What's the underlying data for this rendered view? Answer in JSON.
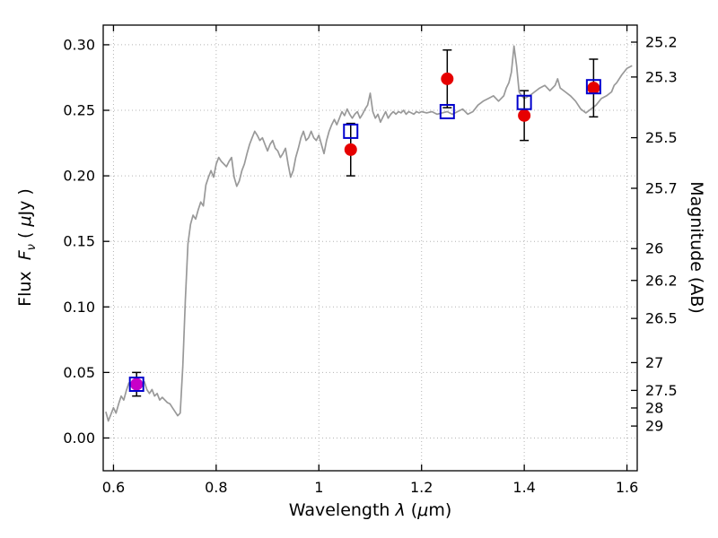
{
  "chart_data": {
    "type": "line",
    "title": "",
    "xlabel": "Wavelength λ (μm)",
    "xlabel_parts": {
      "pre": "Wavelength ",
      "lambda": "λ",
      "mid": " (",
      "mu": "μ",
      "post": "m)"
    },
    "ylabel_left": "Flux Fν ( μJy )",
    "ylabel_left_parts": {
      "pre": "Flux  ",
      "f": "F",
      "sub": "ν",
      "post1": " ( ",
      "mu": "μ",
      "post2": "Jy )"
    },
    "ylabel_right": "Magnitude (AB)",
    "xlim": [
      0.58,
      1.62
    ],
    "ylim": [
      -0.025,
      0.315
    ],
    "grid": true,
    "grid_style": "dotted",
    "legend": "none",
    "colors": {
      "spectrum": "#999999",
      "grid": "#b4b4b4",
      "observed": "#e60000",
      "observed_first": "#c800c8",
      "model": "#0000cd",
      "error_bar": "#000000",
      "axis": "#000000"
    },
    "x_ticks": [
      {
        "label": "0.6",
        "value": 0.6
      },
      {
        "label": "0.8",
        "value": 0.8
      },
      {
        "label": "1",
        "value": 1.0
      },
      {
        "label": "1.2",
        "value": 1.2
      },
      {
        "label": "1.4",
        "value": 1.4
      },
      {
        "label": "1.6",
        "value": 1.6
      }
    ],
    "y_ticks_left": [
      {
        "label": "0.00",
        "value": 0.0
      },
      {
        "label": "0.05",
        "value": 0.05
      },
      {
        "label": "0.10",
        "value": 0.1
      },
      {
        "label": "0.15",
        "value": 0.15
      },
      {
        "label": "0.20",
        "value": 0.2
      },
      {
        "label": "0.25",
        "value": 0.25
      },
      {
        "label": "0.30",
        "value": 0.3
      }
    ],
    "y_ticks_right": [
      {
        "label": "25.2",
        "value": 0.302
      },
      {
        "label": "25.3",
        "value": 0.2754
      },
      {
        "label": "25.5",
        "value": 0.2291
      },
      {
        "label": "25.7",
        "value": 0.1905
      },
      {
        "label": "26",
        "value": 0.1445
      },
      {
        "label": "26.2",
        "value": 0.1202
      },
      {
        "label": "26.5",
        "value": 0.0912
      },
      {
        "label": "27",
        "value": 0.0575
      },
      {
        "label": "27.5",
        "value": 0.0363
      },
      {
        "label": "28",
        "value": 0.0229
      },
      {
        "label": "29",
        "value": 0.00912
      }
    ],
    "series": [
      {
        "name": "model-spectrum",
        "type": "line",
        "color": "#999999",
        "points": [
          [
            0.585,
            0.02
          ],
          [
            0.59,
            0.013
          ],
          [
            0.595,
            0.018
          ],
          [
            0.6,
            0.023
          ],
          [
            0.605,
            0.019
          ],
          [
            0.61,
            0.026
          ],
          [
            0.615,
            0.032
          ],
          [
            0.62,
            0.029
          ],
          [
            0.625,
            0.036
          ],
          [
            0.63,
            0.042
          ],
          [
            0.635,
            0.039
          ],
          [
            0.64,
            0.044
          ],
          [
            0.645,
            0.041
          ],
          [
            0.65,
            0.044
          ],
          [
            0.655,
            0.039
          ],
          [
            0.66,
            0.043
          ],
          [
            0.665,
            0.037
          ],
          [
            0.67,
            0.034
          ],
          [
            0.675,
            0.037
          ],
          [
            0.68,
            0.032
          ],
          [
            0.685,
            0.034
          ],
          [
            0.69,
            0.029
          ],
          [
            0.695,
            0.031
          ],
          [
            0.7,
            0.029
          ],
          [
            0.705,
            0.027
          ],
          [
            0.71,
            0.026
          ],
          [
            0.715,
            0.023
          ],
          [
            0.72,
            0.02
          ],
          [
            0.725,
            0.017
          ],
          [
            0.73,
            0.019
          ],
          [
            0.735,
            0.055
          ],
          [
            0.74,
            0.105
          ],
          [
            0.745,
            0.148
          ],
          [
            0.75,
            0.163
          ],
          [
            0.755,
            0.17
          ],
          [
            0.76,
            0.167
          ],
          [
            0.765,
            0.174
          ],
          [
            0.77,
            0.18
          ],
          [
            0.775,
            0.177
          ],
          [
            0.78,
            0.193
          ],
          [
            0.785,
            0.199
          ],
          [
            0.79,
            0.204
          ],
          [
            0.795,
            0.199
          ],
          [
            0.8,
            0.209
          ],
          [
            0.805,
            0.214
          ],
          [
            0.81,
            0.211
          ],
          [
            0.815,
            0.209
          ],
          [
            0.82,
            0.207
          ],
          [
            0.825,
            0.211
          ],
          [
            0.83,
            0.214
          ],
          [
            0.835,
            0.199
          ],
          [
            0.84,
            0.192
          ],
          [
            0.845,
            0.196
          ],
          [
            0.85,
            0.204
          ],
          [
            0.855,
            0.209
          ],
          [
            0.86,
            0.217
          ],
          [
            0.865,
            0.224
          ],
          [
            0.87,
            0.229
          ],
          [
            0.875,
            0.234
          ],
          [
            0.88,
            0.231
          ],
          [
            0.885,
            0.227
          ],
          [
            0.89,
            0.229
          ],
          [
            0.895,
            0.224
          ],
          [
            0.9,
            0.219
          ],
          [
            0.905,
            0.224
          ],
          [
            0.91,
            0.227
          ],
          [
            0.915,
            0.221
          ],
          [
            0.92,
            0.219
          ],
          [
            0.925,
            0.214
          ],
          [
            0.93,
            0.217
          ],
          [
            0.935,
            0.221
          ],
          [
            0.94,
            0.209
          ],
          [
            0.945,
            0.199
          ],
          [
            0.95,
            0.204
          ],
          [
            0.955,
            0.214
          ],
          [
            0.96,
            0.221
          ],
          [
            0.965,
            0.229
          ],
          [
            0.97,
            0.234
          ],
          [
            0.975,
            0.227
          ],
          [
            0.98,
            0.229
          ],
          [
            0.985,
            0.234
          ],
          [
            0.99,
            0.229
          ],
          [
            0.995,
            0.227
          ],
          [
            1.0,
            0.231
          ],
          [
            1.005,
            0.224
          ],
          [
            1.01,
            0.217
          ],
          [
            1.015,
            0.227
          ],
          [
            1.02,
            0.234
          ],
          [
            1.025,
            0.239
          ],
          [
            1.03,
            0.243
          ],
          [
            1.035,
            0.239
          ],
          [
            1.04,
            0.244
          ],
          [
            1.045,
            0.249
          ],
          [
            1.05,
            0.246
          ],
          [
            1.055,
            0.251
          ],
          [
            1.06,
            0.247
          ],
          [
            1.065,
            0.244
          ],
          [
            1.07,
            0.247
          ],
          [
            1.075,
            0.249
          ],
          [
            1.08,
            0.244
          ],
          [
            1.085,
            0.247
          ],
          [
            1.09,
            0.251
          ],
          [
            1.095,
            0.254
          ],
          [
            1.1,
            0.263
          ],
          [
            1.105,
            0.249
          ],
          [
            1.11,
            0.244
          ],
          [
            1.115,
            0.247
          ],
          [
            1.12,
            0.241
          ],
          [
            1.125,
            0.245
          ],
          [
            1.13,
            0.249
          ],
          [
            1.135,
            0.244
          ],
          [
            1.14,
            0.247
          ],
          [
            1.145,
            0.249
          ],
          [
            1.15,
            0.247
          ],
          [
            1.155,
            0.249
          ],
          [
            1.16,
            0.248
          ],
          [
            1.165,
            0.25
          ],
          [
            1.17,
            0.247
          ],
          [
            1.175,
            0.249
          ],
          [
            1.18,
            0.248
          ],
          [
            1.185,
            0.247
          ],
          [
            1.19,
            0.249
          ],
          [
            1.195,
            0.248
          ],
          [
            1.2,
            0.249
          ],
          [
            1.21,
            0.248
          ],
          [
            1.22,
            0.249
          ],
          [
            1.23,
            0.247
          ],
          [
            1.24,
            0.248
          ],
          [
            1.25,
            0.249
          ],
          [
            1.26,
            0.247
          ],
          [
            1.27,
            0.249
          ],
          [
            1.28,
            0.251
          ],
          [
            1.29,
            0.247
          ],
          [
            1.3,
            0.249
          ],
          [
            1.31,
            0.254
          ],
          [
            1.32,
            0.257
          ],
          [
            1.33,
            0.259
          ],
          [
            1.34,
            0.261
          ],
          [
            1.35,
            0.257
          ],
          [
            1.36,
            0.261
          ],
          [
            1.365,
            0.267
          ],
          [
            1.37,
            0.271
          ],
          [
            1.375,
            0.279
          ],
          [
            1.38,
            0.299
          ],
          [
            1.385,
            0.284
          ],
          [
            1.39,
            0.264
          ],
          [
            1.395,
            0.261
          ],
          [
            1.4,
            0.259
          ],
          [
            1.41,
            0.261
          ],
          [
            1.42,
            0.264
          ],
          [
            1.43,
            0.267
          ],
          [
            1.44,
            0.269
          ],
          [
            1.45,
            0.265
          ],
          [
            1.46,
            0.269
          ],
          [
            1.465,
            0.274
          ],
          [
            1.47,
            0.267
          ],
          [
            1.48,
            0.264
          ],
          [
            1.49,
            0.261
          ],
          [
            1.5,
            0.257
          ],
          [
            1.51,
            0.251
          ],
          [
            1.52,
            0.248
          ],
          [
            1.53,
            0.251
          ],
          [
            1.54,
            0.254
          ],
          [
            1.55,
            0.259
          ],
          [
            1.56,
            0.261
          ],
          [
            1.57,
            0.264
          ],
          [
            1.575,
            0.269
          ],
          [
            1.58,
            0.271
          ],
          [
            1.59,
            0.277
          ],
          [
            1.6,
            0.282
          ],
          [
            1.61,
            0.284
          ]
        ]
      },
      {
        "name": "observed-photometry",
        "type": "scatter",
        "marker": "circle",
        "color": "#e60000",
        "points": [
          {
            "x": 0.645,
            "y": 0.041,
            "yerr": 0.009,
            "color": "#c800c8"
          },
          {
            "x": 1.062,
            "y": 0.22,
            "yerr": 0.02
          },
          {
            "x": 1.25,
            "y": 0.274,
            "yerr": 0.022
          },
          {
            "x": 1.4,
            "y": 0.246,
            "yerr": 0.019
          },
          {
            "x": 1.535,
            "y": 0.267,
            "yerr": 0.022
          }
        ]
      },
      {
        "name": "model-photometry",
        "type": "scatter",
        "marker": "square-open",
        "color": "#0000cd",
        "points": [
          {
            "x": 0.645,
            "y": 0.041
          },
          {
            "x": 1.062,
            "y": 0.234
          },
          {
            "x": 1.25,
            "y": 0.249
          },
          {
            "x": 1.4,
            "y": 0.256
          },
          {
            "x": 1.535,
            "y": 0.268
          }
        ]
      }
    ]
  }
}
